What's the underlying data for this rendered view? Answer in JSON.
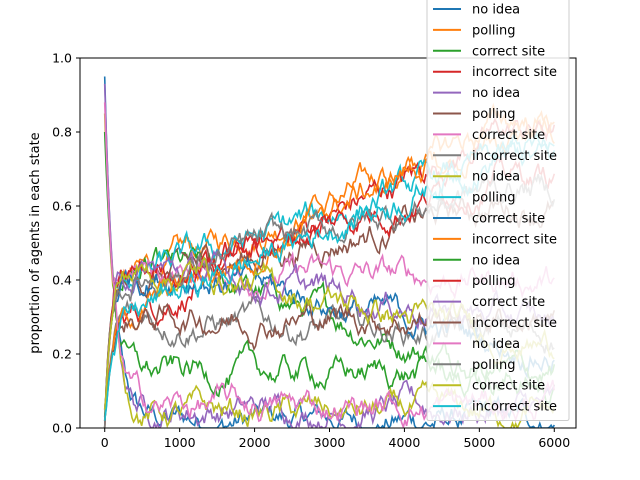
{
  "chart_data": {
    "type": "line",
    "title": "",
    "xlabel": "",
    "ylabel": "proportion of agents in each state",
    "xlim": [
      -330,
      6290
    ],
    "ylim": [
      0.0,
      1.0
    ],
    "xticks": [
      0,
      1000,
      2000,
      3000,
      4000,
      5000,
      6000
    ],
    "yticks": [
      0.0,
      0.2,
      0.4,
      0.6,
      0.8,
      1.0
    ],
    "xtick_labels": [
      "0",
      "1000",
      "2000",
      "3000",
      "4000",
      "5000",
      "6000"
    ],
    "ytick_labels": [
      "0.0",
      "0.2",
      "0.4",
      "0.6",
      "0.8",
      "1.0"
    ],
    "grid": false,
    "legend_position": "upper-right, overflowing above the plot",
    "palette": [
      "#1f77b4",
      "#ff7f0e",
      "#2ca02c",
      "#d62728",
      "#9467bd",
      "#8c564b",
      "#e377c2",
      "#7f7f7f",
      "#bcbd22",
      "#17becf"
    ],
    "x_range": [
      0,
      6000
    ],
    "series": [
      {
        "name": "no idea",
        "color": "#1f77b4",
        "kind": "noidea",
        "start": 0.95,
        "end": 0.02
      },
      {
        "name": "polling",
        "color": "#ff7f0e",
        "kind": "polling",
        "start": 0.0,
        "end": 0.78
      },
      {
        "name": "correct site",
        "color": "#2ca02c",
        "kind": "correct",
        "start": 0.03,
        "end": 0.1
      },
      {
        "name": "incorrect site",
        "color": "#d62728",
        "kind": "incorrect",
        "start": 0.02,
        "end": 0.8
      },
      {
        "name": "no idea",
        "color": "#9467bd",
        "kind": "noidea",
        "start": 0.93,
        "end": 0.05
      },
      {
        "name": "polling",
        "color": "#8c564b",
        "kind": "polling",
        "start": 0.0,
        "end": 0.6
      },
      {
        "name": "correct site",
        "color": "#e377c2",
        "kind": "correct",
        "start": 0.05,
        "end": 0.4
      },
      {
        "name": "incorrect site",
        "color": "#7f7f7f",
        "kind": "incorrect",
        "start": 0.02,
        "end": 0.25
      },
      {
        "name": "no idea",
        "color": "#bcbd22",
        "kind": "noidea",
        "start": 0.85,
        "end": 0.04
      },
      {
        "name": "polling",
        "color": "#17becf",
        "kind": "polling",
        "start": 0.0,
        "end": 0.72
      },
      {
        "name": "correct site",
        "color": "#1f77b4",
        "kind": "correct",
        "start": 0.05,
        "end": 0.2
      },
      {
        "name": "incorrect site",
        "color": "#ff7f0e",
        "kind": "incorrect",
        "start": 0.02,
        "end": 0.83
      },
      {
        "name": "no idea",
        "color": "#2ca02c",
        "kind": "noidea",
        "start": 0.8,
        "end": 0.15
      },
      {
        "name": "polling",
        "color": "#d62728",
        "kind": "polling",
        "start": 0.0,
        "end": 0.68
      },
      {
        "name": "correct site",
        "color": "#9467bd",
        "kind": "correct",
        "start": 0.05,
        "end": 0.28
      },
      {
        "name": "incorrect site",
        "color": "#8c564b",
        "kind": "incorrect",
        "start": 0.02,
        "end": 0.3
      },
      {
        "name": "no idea",
        "color": "#e377c2",
        "kind": "noidea",
        "start": 0.88,
        "end": 0.06
      },
      {
        "name": "polling",
        "color": "#7f7f7f",
        "kind": "polling",
        "start": 0.0,
        "end": 0.65
      },
      {
        "name": "correct site",
        "color": "#bcbd22",
        "kind": "correct",
        "start": 0.05,
        "end": 0.22
      },
      {
        "name": "incorrect site",
        "color": "#17becf",
        "kind": "incorrect",
        "start": 0.02,
        "end": 0.75
      }
    ]
  }
}
